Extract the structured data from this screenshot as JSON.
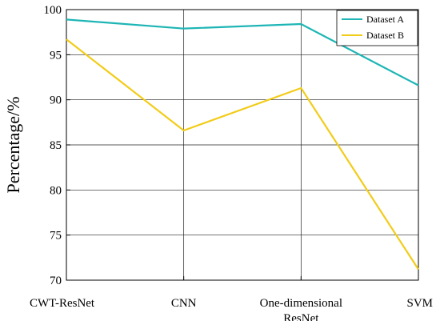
{
  "chart_data": {
    "type": "line",
    "categories": [
      "CWT-ResNet",
      "CNN",
      "One-dimensional ResNet",
      "SVM"
    ],
    "category_label_lines": [
      [
        "CWT-ResNet"
      ],
      [
        "CNN"
      ],
      [
        "One-dimensional",
        "ResNet"
      ],
      [
        "SVM"
      ]
    ],
    "series": [
      {
        "name": "Dataset A",
        "values": [
          98.9,
          97.9,
          98.4,
          91.6
        ],
        "color": "#1fb5b5"
      },
      {
        "name": "Dataset B",
        "values": [
          96.7,
          86.6,
          91.3,
          71.2
        ],
        "color": "#f2cc1a"
      }
    ],
    "ylabel": "Percentage/%",
    "xlabel": "",
    "title": "",
    "ylim": [
      70,
      100
    ],
    "yticks": [
      "70",
      "75",
      "80",
      "85",
      "90",
      "95",
      "100"
    ],
    "grid": true,
    "legend_position": "top-right"
  }
}
